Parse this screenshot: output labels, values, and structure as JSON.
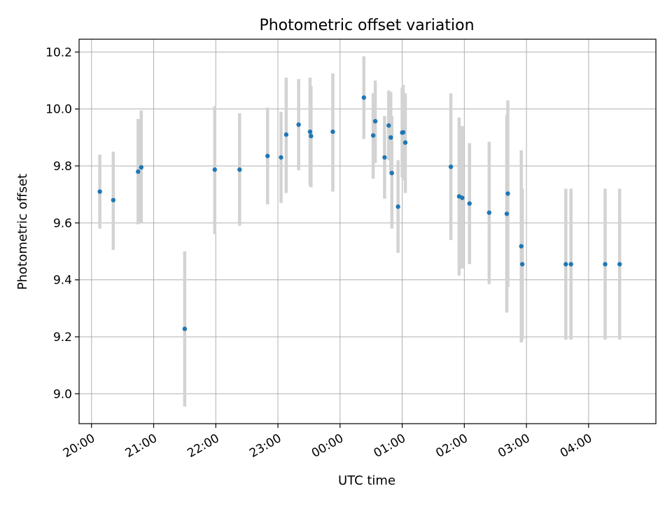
{
  "chart_data": {
    "type": "scatter",
    "title": "Photometric offset variation",
    "xlabel": "UTC time",
    "ylabel": "Photometric offset",
    "x_ticks": [
      "20:00",
      "21:00",
      "22:00",
      "23:00",
      "00:00",
      "01:00",
      "02:00",
      "03:00",
      "04:00"
    ],
    "y_ticks": [
      "9.0",
      "9.2",
      "9.4",
      "9.6",
      "9.8",
      "10.0",
      "10.2"
    ],
    "xlim": [
      "19:48",
      "05:05"
    ],
    "ylim": [
      8.895,
      10.245
    ],
    "grid": true,
    "point_color": "#1f77b4",
    "errorbar_color": "#d3d3d3",
    "points": [
      {
        "t": "20:08",
        "y": 9.71,
        "lo": 9.58,
        "hi": 9.84
      },
      {
        "t": "20:21",
        "y": 9.68,
        "lo": 9.505,
        "hi": 9.85
      },
      {
        "t": "20:45",
        "y": 9.78,
        "lo": 9.595,
        "hi": 9.965
      },
      {
        "t": "20:48",
        "y": 9.795,
        "lo": 9.6,
        "hi": 9.995
      },
      {
        "t": "21:30",
        "y": 9.228,
        "lo": 8.955,
        "hi": 9.5
      },
      {
        "t": "21:59",
        "y": 9.787,
        "lo": 9.56,
        "hi": 10.01
      },
      {
        "t": "22:23",
        "y": 9.787,
        "lo": 9.59,
        "hi": 9.985
      },
      {
        "t": "22:50",
        "y": 9.835,
        "lo": 9.665,
        "hi": 10.005
      },
      {
        "t": "23:03",
        "y": 9.83,
        "lo": 9.67,
        "hi": 9.99
      },
      {
        "t": "23:08",
        "y": 9.91,
        "lo": 9.705,
        "hi": 10.11
      },
      {
        "t": "23:20",
        "y": 9.945,
        "lo": 9.785,
        "hi": 10.105
      },
      {
        "t": "23:31",
        "y": 9.92,
        "lo": 9.73,
        "hi": 10.11
      },
      {
        "t": "23:32",
        "y": 9.905,
        "lo": 9.725,
        "hi": 10.08
      },
      {
        "t": "23:53",
        "y": 9.92,
        "lo": 9.71,
        "hi": 10.125
      },
      {
        "t": "00:23",
        "y": 10.04,
        "lo": 9.895,
        "hi": 10.185
      },
      {
        "t": "00:32",
        "y": 9.907,
        "lo": 9.755,
        "hi": 10.055
      },
      {
        "t": "00:34",
        "y": 9.957,
        "lo": 9.81,
        "hi": 10.1
      },
      {
        "t": "00:43",
        "y": 9.83,
        "lo": 9.685,
        "hi": 9.975
      },
      {
        "t": "00:47",
        "y": 9.942,
        "lo": 9.82,
        "hi": 10.065
      },
      {
        "t": "00:49",
        "y": 9.9,
        "lo": 9.77,
        "hi": 10.06
      },
      {
        "t": "00:50",
        "y": 9.775,
        "lo": 9.58,
        "hi": 9.975
      },
      {
        "t": "00:56",
        "y": 9.657,
        "lo": 9.495,
        "hi": 9.82
      },
      {
        "t": "01:00",
        "y": 9.917,
        "lo": 9.76,
        "hi": 10.075
      },
      {
        "t": "01:01",
        "y": 9.918,
        "lo": 9.75,
        "hi": 10.085
      },
      {
        "t": "01:03",
        "y": 9.882,
        "lo": 9.705,
        "hi": 10.055
      },
      {
        "t": "01:47",
        "y": 9.797,
        "lo": 9.54,
        "hi": 10.055
      },
      {
        "t": "01:55",
        "y": 9.693,
        "lo": 9.415,
        "hi": 9.97
      },
      {
        "t": "01:58",
        "y": 9.688,
        "lo": 9.44,
        "hi": 9.94
      },
      {
        "t": "02:05",
        "y": 9.668,
        "lo": 9.455,
        "hi": 9.88
      },
      {
        "t": "02:24",
        "y": 9.636,
        "lo": 9.385,
        "hi": 9.885
      },
      {
        "t": "02:41",
        "y": 9.632,
        "lo": 9.285,
        "hi": 9.98
      },
      {
        "t": "02:42",
        "y": 9.703,
        "lo": 9.375,
        "hi": 10.03
      },
      {
        "t": "02:55",
        "y": 9.518,
        "lo": 9.18,
        "hi": 9.855
      },
      {
        "t": "02:56",
        "y": 9.455,
        "lo": 9.19,
        "hi": 9.72
      },
      {
        "t": "03:38",
        "y": 9.455,
        "lo": 9.19,
        "hi": 9.72
      },
      {
        "t": "03:43",
        "y": 9.455,
        "lo": 9.19,
        "hi": 9.72
      },
      {
        "t": "04:16",
        "y": 9.455,
        "lo": 9.19,
        "hi": 9.72
      },
      {
        "t": "04:30",
        "y": 9.455,
        "lo": 9.19,
        "hi": 9.72
      }
    ]
  }
}
